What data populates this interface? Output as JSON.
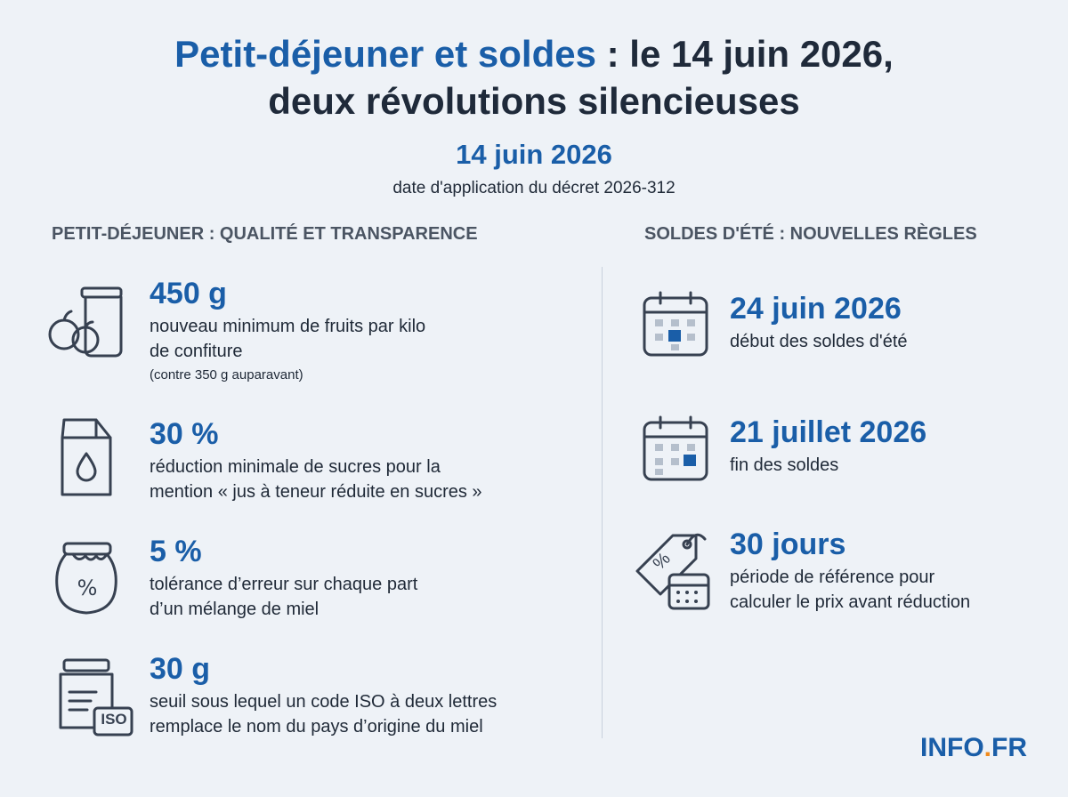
{
  "header": {
    "title": {
      "highlight": "Petit-déjeuner et soldes",
      "rest": ": le 14 juin 2026,",
      "line2": "deux révolutions silencieuses"
    },
    "key_date": "14 juin 2026",
    "key_date_caption": "date d'application du décret 2026-312"
  },
  "left": {
    "heading": "PETIT-DÉJEUNER : QUALITÉ ET TRANSPARENCE",
    "items": [
      {
        "value": "450 g",
        "lines": [
          "nouveau minimum de fruits par kilo",
          "de confiture"
        ],
        "note": "(contre 350 g auparavant)"
      },
      {
        "value": "30 %",
        "lines": [
          "réduction minimale de sucres pour la",
          "mention « jus à teneur réduite en sucres »"
        ]
      },
      {
        "value": "5 %",
        "lines": [
          "tolérance d’erreur sur chaque part",
          "d’un mélange de miel"
        ]
      },
      {
        "value": "30 g",
        "lines": [
          "seuil sous lequel un code ISO à deux lettres",
          "remplace le nom du pays d’origine du miel"
        ],
        "icon_text": "ISO"
      }
    ]
  },
  "right": {
    "heading": "SOLDES D'ÉTÉ : NOUVELLES RÈGLES",
    "items": [
      {
        "value": "24 juin 2026",
        "lines": [
          "début des soldes d'été"
        ]
      },
      {
        "value": "21 juillet 2026",
        "lines": [
          "fin des soldes"
        ]
      },
      {
        "value": "30 jours",
        "lines": [
          "période de référence pour",
          "calculer le prix avant réduction"
        ],
        "icon_text": "%"
      }
    ]
  },
  "logo": {
    "main": "INFO",
    "dot": ".",
    "suffix": "FR"
  }
}
